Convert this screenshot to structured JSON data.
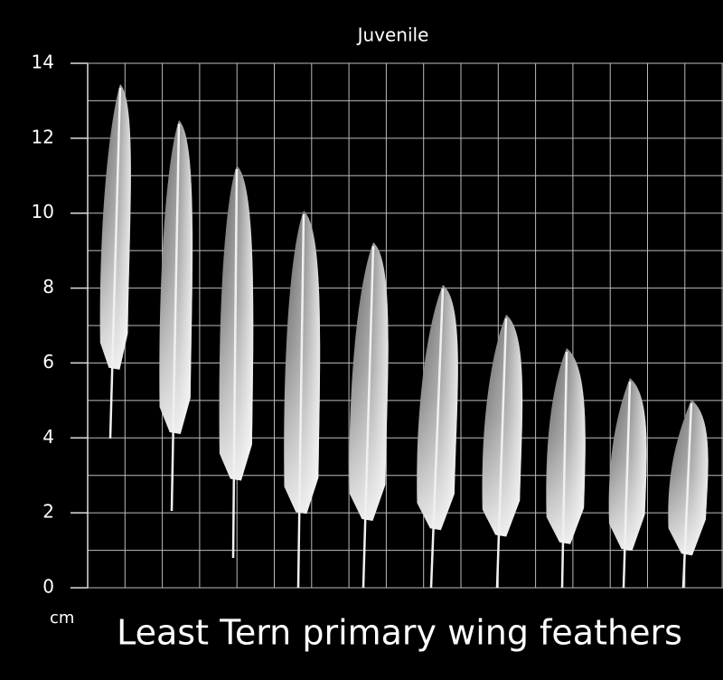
{
  "title": "Juvenile",
  "caption": "Least Tern primary wing feathers",
  "unit": "cm",
  "axis": {
    "ylim": [
      0,
      14
    ],
    "yticks": [
      0,
      2,
      4,
      6,
      8,
      10,
      12,
      14
    ],
    "ygrid": [
      0,
      1,
      2,
      3,
      4,
      5,
      6,
      7,
      8,
      9,
      10,
      11,
      12,
      13,
      14
    ]
  }
}
